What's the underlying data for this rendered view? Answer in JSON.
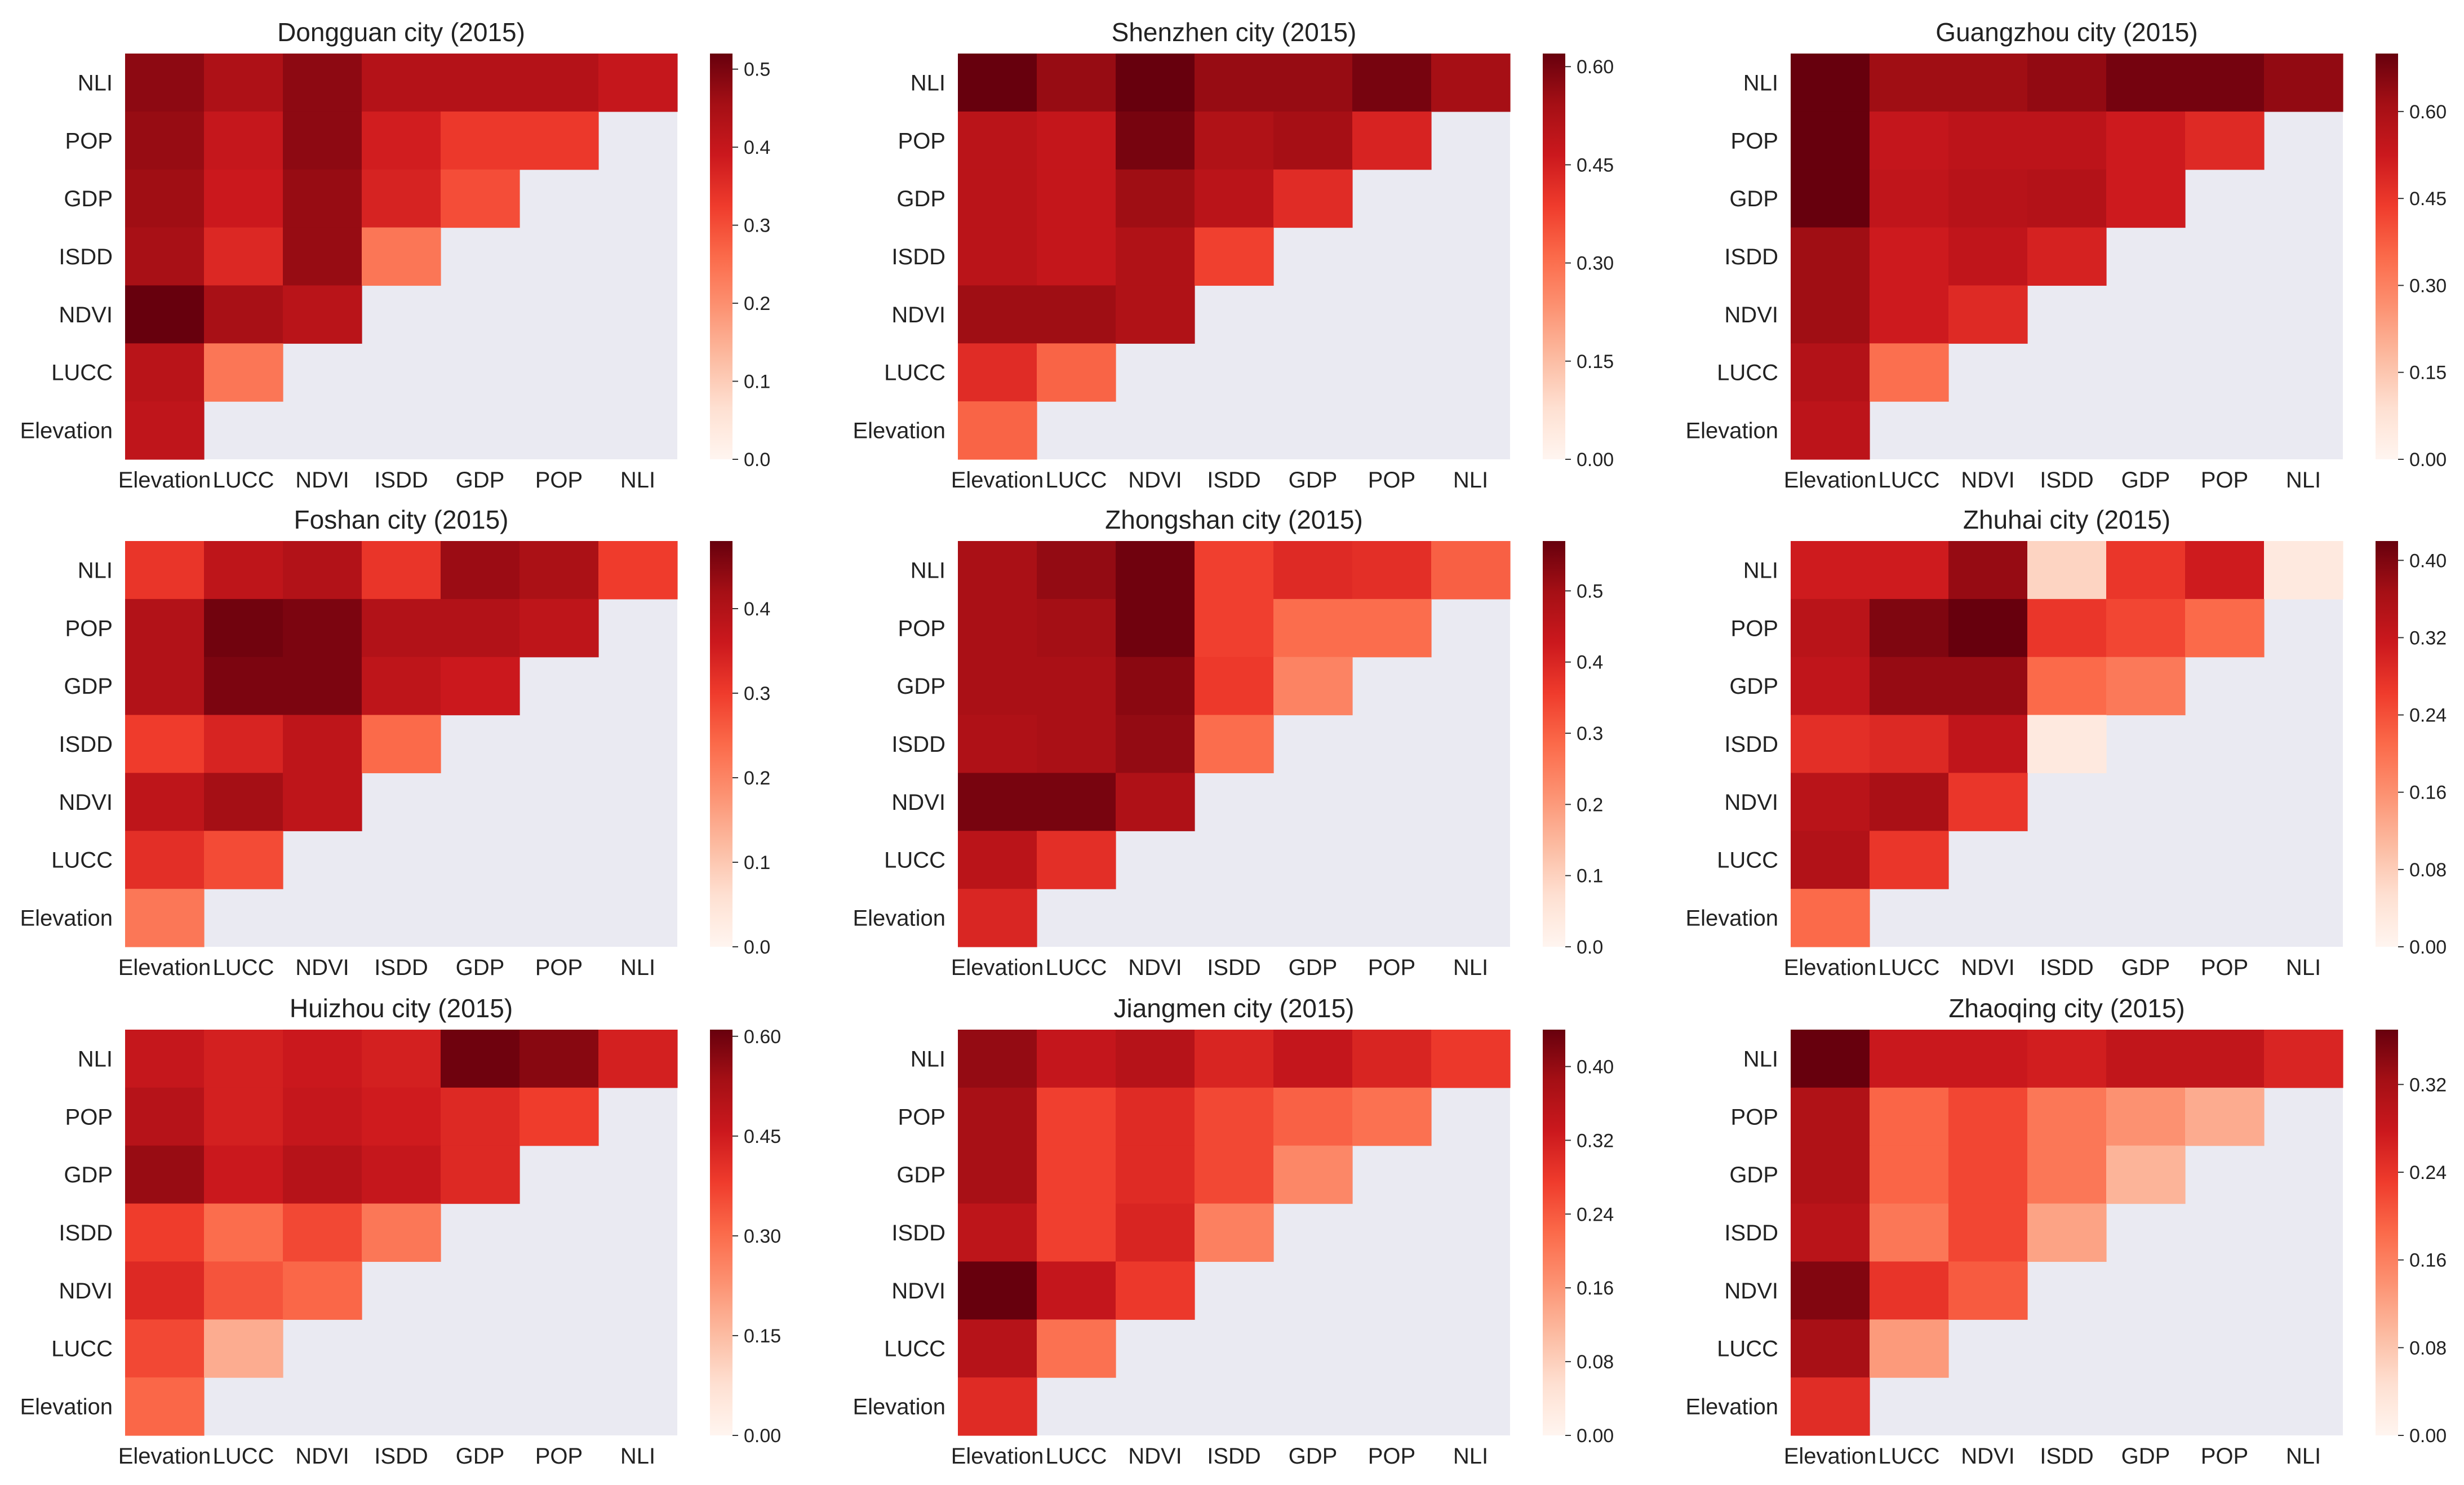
{
  "figure": {
    "colormap": "Reds",
    "mask_color": "#eaeaf2",
    "row_labels": [
      "NLI",
      "POP",
      "GDP",
      "ISDD",
      "NDVI",
      "LUCC",
      "Elevation"
    ],
    "col_labels": [
      "Elevation",
      "LUCC",
      "NDVI",
      "ISDD",
      "GDP",
      "POP",
      "NLI"
    ]
  },
  "chart_data": [
    {
      "type": "heatmap",
      "title": "Dongguan city (2015)",
      "vmin": 0,
      "vmax": 0.52,
      "colorbar_ticks": [
        "0.0",
        "0.1",
        "0.2",
        "0.3",
        "0.4",
        "0.5"
      ],
      "colorbar_tick_values": [
        0,
        0.1,
        0.2,
        0.3,
        0.4,
        0.5
      ],
      "values": [
        [
          0.48,
          0.44,
          0.48,
          0.43,
          0.43,
          0.43,
          0.4
        ],
        [
          0.47,
          0.4,
          0.48,
          0.38,
          0.33,
          0.33
        ],
        [
          0.46,
          0.39,
          0.47,
          0.37,
          0.3
        ],
        [
          0.45,
          0.36,
          0.47,
          0.24
        ],
        [
          0.52,
          0.45,
          0.42
        ],
        [
          0.42,
          0.24
        ],
        [
          0.41
        ]
      ]
    },
    {
      "type": "heatmap",
      "title": "Shenzhen city (2015)",
      "vmin": 0,
      "vmax": 0.62,
      "colorbar_ticks": [
        "0.00",
        "0.15",
        "0.30",
        "0.45",
        "0.60"
      ],
      "colorbar_tick_values": [
        0,
        0.15,
        0.3,
        0.45,
        0.6
      ],
      "values": [
        [
          0.62,
          0.56,
          0.62,
          0.56,
          0.56,
          0.6,
          0.54
        ],
        [
          0.5,
          0.48,
          0.6,
          0.52,
          0.54,
          0.44
        ],
        [
          0.5,
          0.48,
          0.55,
          0.5,
          0.42
        ],
        [
          0.5,
          0.48,
          0.52,
          0.38
        ],
        [
          0.55,
          0.55,
          0.52
        ],
        [
          0.42,
          0.32
        ],
        [
          0.32
        ]
      ]
    },
    {
      "type": "heatmap",
      "title": "Guangzhou city (2015)",
      "vmin": 0,
      "vmax": 0.7,
      "colorbar_ticks": [
        "0.00",
        "0.15",
        "0.30",
        "0.45",
        "0.60"
      ],
      "colorbar_tick_values": [
        0,
        0.15,
        0.3,
        0.45,
        0.6
      ],
      "values": [
        [
          0.7,
          0.62,
          0.62,
          0.64,
          0.68,
          0.68,
          0.64
        ],
        [
          0.7,
          0.54,
          0.56,
          0.56,
          0.52,
          0.48
        ],
        [
          0.7,
          0.55,
          0.57,
          0.58,
          0.52
        ],
        [
          0.62,
          0.52,
          0.55,
          0.5
        ],
        [
          0.62,
          0.52,
          0.48
        ],
        [
          0.58,
          0.34
        ],
        [
          0.56
        ]
      ]
    },
    {
      "type": "heatmap",
      "title": "Foshan city (2015)",
      "vmin": 0,
      "vmax": 0.48,
      "colorbar_ticks": [
        "0.0",
        "0.1",
        "0.2",
        "0.3",
        "0.4"
      ],
      "colorbar_tick_values": [
        0,
        0.1,
        0.2,
        0.3,
        0.4
      ],
      "values": [
        [
          0.31,
          0.38,
          0.4,
          0.31,
          0.43,
          0.41,
          0.3
        ],
        [
          0.4,
          0.47,
          0.46,
          0.4,
          0.4,
          0.38
        ],
        [
          0.4,
          0.46,
          0.46,
          0.38,
          0.36
        ],
        [
          0.3,
          0.34,
          0.38,
          0.24
        ],
        [
          0.38,
          0.42,
          0.38
        ],
        [
          0.32,
          0.28
        ],
        [
          0.22
        ]
      ]
    },
    {
      "type": "heatmap",
      "title": "Zhongshan city (2015)",
      "vmin": 0,
      "vmax": 0.57,
      "colorbar_ticks": [
        "0.0",
        "0.1",
        "0.2",
        "0.3",
        "0.4",
        "0.5"
      ],
      "colorbar_tick_values": [
        0,
        0.1,
        0.2,
        0.3,
        0.4,
        0.5
      ],
      "values": [
        [
          0.49,
          0.52,
          0.56,
          0.35,
          0.39,
          0.38,
          0.3
        ],
        [
          0.49,
          0.5,
          0.56,
          0.35,
          0.28,
          0.28
        ],
        [
          0.49,
          0.49,
          0.53,
          0.36,
          0.24
        ],
        [
          0.48,
          0.49,
          0.52,
          0.28
        ],
        [
          0.55,
          0.55,
          0.48
        ],
        [
          0.46,
          0.38
        ],
        [
          0.4
        ]
      ]
    },
    {
      "type": "heatmap",
      "title": "Zhuhai city (2015)",
      "vmin": 0,
      "vmax": 0.42,
      "colorbar_ticks": [
        "0.00",
        "0.08",
        "0.16",
        "0.24",
        "0.32",
        "0.40"
      ],
      "colorbar_tick_values": [
        0,
        0.08,
        0.16,
        0.24,
        0.32,
        0.4
      ],
      "values": [
        [
          0.31,
          0.31,
          0.38,
          0.07,
          0.27,
          0.31,
          0.03
        ],
        [
          0.34,
          0.4,
          0.42,
          0.27,
          0.25,
          0.21
        ],
        [
          0.33,
          0.38,
          0.38,
          0.21,
          0.19
        ],
        [
          0.28,
          0.29,
          0.33,
          0.03
        ],
        [
          0.34,
          0.36,
          0.27
        ],
        [
          0.35,
          0.27
        ],
        [
          0.21
        ]
      ]
    },
    {
      "type": "heatmap",
      "title": "Huizhou city (2015)",
      "vmin": 0,
      "vmax": 0.61,
      "colorbar_ticks": [
        "0.00",
        "0.15",
        "0.30",
        "0.45",
        "0.60"
      ],
      "colorbar_tick_values": [
        0,
        0.15,
        0.3,
        0.45,
        0.6
      ],
      "values": [
        [
          0.47,
          0.44,
          0.46,
          0.44,
          0.6,
          0.57,
          0.44
        ],
        [
          0.5,
          0.44,
          0.47,
          0.45,
          0.42,
          0.38
        ],
        [
          0.55,
          0.46,
          0.5,
          0.47,
          0.42
        ],
        [
          0.38,
          0.3,
          0.36,
          0.28
        ],
        [
          0.42,
          0.34,
          0.31
        ],
        [
          0.36,
          0.18
        ],
        [
          0.31
        ]
      ]
    },
    {
      "type": "heatmap",
      "title": "Jiangmen city (2015)",
      "vmin": 0,
      "vmax": 0.44,
      "colorbar_ticks": [
        "0.00",
        "0.08",
        "0.16",
        "0.24",
        "0.32",
        "0.40"
      ],
      "colorbar_tick_values": [
        0,
        0.08,
        0.16,
        0.24,
        0.32,
        0.4
      ],
      "values": [
        [
          0.4,
          0.34,
          0.36,
          0.31,
          0.34,
          0.31,
          0.28
        ],
        [
          0.38,
          0.27,
          0.3,
          0.26,
          0.23,
          0.21
        ],
        [
          0.38,
          0.27,
          0.3,
          0.26,
          0.18
        ],
        [
          0.35,
          0.27,
          0.31,
          0.19
        ],
        [
          0.44,
          0.34,
          0.28
        ],
        [
          0.36,
          0.21
        ],
        [
          0.3
        ]
      ]
    },
    {
      "type": "heatmap",
      "title": "Zhaoqing city (2015)",
      "vmin": 0,
      "vmax": 0.37,
      "colorbar_ticks": [
        "0.00",
        "0.08",
        "0.16",
        "0.24",
        "0.32"
      ],
      "colorbar_tick_values": [
        0,
        0.08,
        0.16,
        0.24,
        0.32
      ],
      "values": [
        [
          0.37,
          0.28,
          0.28,
          0.27,
          0.29,
          0.29,
          0.26
        ],
        [
          0.31,
          0.19,
          0.22,
          0.17,
          0.14,
          0.11
        ],
        [
          0.31,
          0.19,
          0.22,
          0.17,
          0.1
        ],
        [
          0.3,
          0.17,
          0.22,
          0.12
        ],
        [
          0.35,
          0.24,
          0.2
        ],
        [
          0.32,
          0.13
        ],
        [
          0.25
        ]
      ]
    }
  ]
}
